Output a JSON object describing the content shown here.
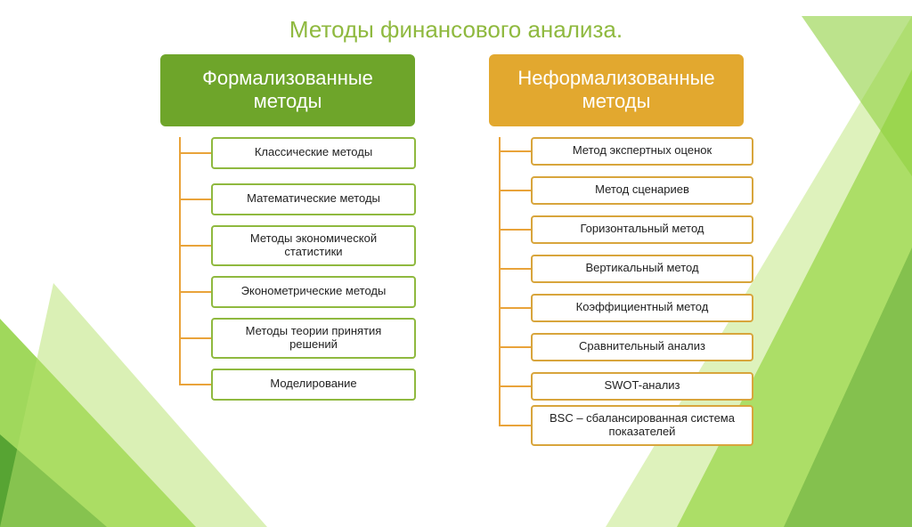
{
  "title": "Методы финансового анализа.",
  "title_color": "#8fb93f",
  "background": {
    "triangles": true,
    "colors": [
      "#4f9e2f",
      "#8fd13f",
      "#b6e26b",
      "#d9f09a"
    ]
  },
  "columns": [
    {
      "header": "Формализованные методы",
      "header_bg": "#6ea52a",
      "header_border": "#ffffff",
      "trunk_color": "#e9a33a",
      "item_border": "#8fb93f",
      "item_width": 230,
      "item_height": 36,
      "item_gap": 16,
      "items": [
        "Классические методы",
        "Математические методы",
        "Методы экономической статистики",
        "Эконометрические методы",
        "Методы теории принятия решений",
        "Моделирование"
      ]
    },
    {
      "header": "Неформализованные методы",
      "header_bg": "#e2a82f",
      "header_border": "#ffffff",
      "trunk_color": "#e9a33a",
      "item_border": "#d8a53c",
      "item_width": 250,
      "item_height": 32,
      "item_gap": 12,
      "items": [
        "Метод экспертных оценок",
        "Метод сценариев",
        "Горизонтальный метод",
        "Вертикальный метод",
        "Коэффициентный метод",
        "Сравнительный анализ",
        "SWOT-анализ",
        "BSC – сбалансированная система показателей"
      ]
    }
  ]
}
